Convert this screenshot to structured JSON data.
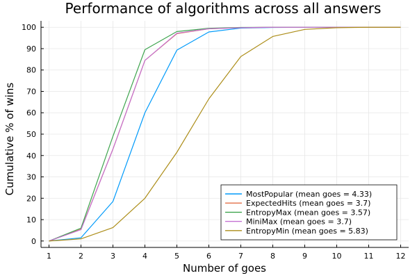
{
  "chart_data": {
    "type": "line",
    "title": "Performance of algorithms across all answers",
    "xlabel": "Number of goes",
    "ylabel": "Cumulative % of wins",
    "x": [
      1,
      2,
      3,
      4,
      5,
      6,
      7,
      8,
      9,
      10,
      11,
      12
    ],
    "xlim": [
      0.75,
      12.25
    ],
    "ylim": [
      -3,
      103
    ],
    "xticks": [
      1,
      2,
      3,
      4,
      5,
      6,
      7,
      8,
      9,
      10,
      11,
      12
    ],
    "yticks": [
      0,
      10,
      20,
      30,
      40,
      50,
      60,
      70,
      80,
      90,
      100
    ],
    "grid": true,
    "legend_position": "bottom-right",
    "series": [
      {
        "name": "MostPopular (mean goes = 4.33)",
        "color": "#009AFA",
        "values": [
          0,
          1.5,
          18.5,
          60,
          89.3,
          97.8,
          99.6,
          99.9,
          100,
          100,
          100,
          100
        ]
      },
      {
        "name": "ExpectedHits (mean goes = 3.7)",
        "color": "#E36F47",
        "values": [
          0,
          5.5,
          43,
          84.5,
          97,
          99.3,
          99.8,
          100,
          100,
          100,
          100,
          100
        ]
      },
      {
        "name": "EntropyMax (mean goes = 3.57)",
        "color": "#3EA44E",
        "values": [
          0,
          6,
          49,
          89.5,
          98,
          99.5,
          99.9,
          100,
          100,
          100,
          100,
          100
        ]
      },
      {
        "name": "MiniMax (mean goes = 3.7)",
        "color": "#C371D2",
        "values": [
          0,
          5.3,
          43,
          84.5,
          97.2,
          99.3,
          99.8,
          100,
          100,
          100,
          100,
          100
        ]
      },
      {
        "name": "EntropyMin (mean goes = 5.83)",
        "color": "#AC8D18",
        "values": [
          0,
          1,
          6.3,
          20,
          41.5,
          66.5,
          86.3,
          95.7,
          99,
          99.8,
          100,
          100
        ]
      }
    ]
  }
}
